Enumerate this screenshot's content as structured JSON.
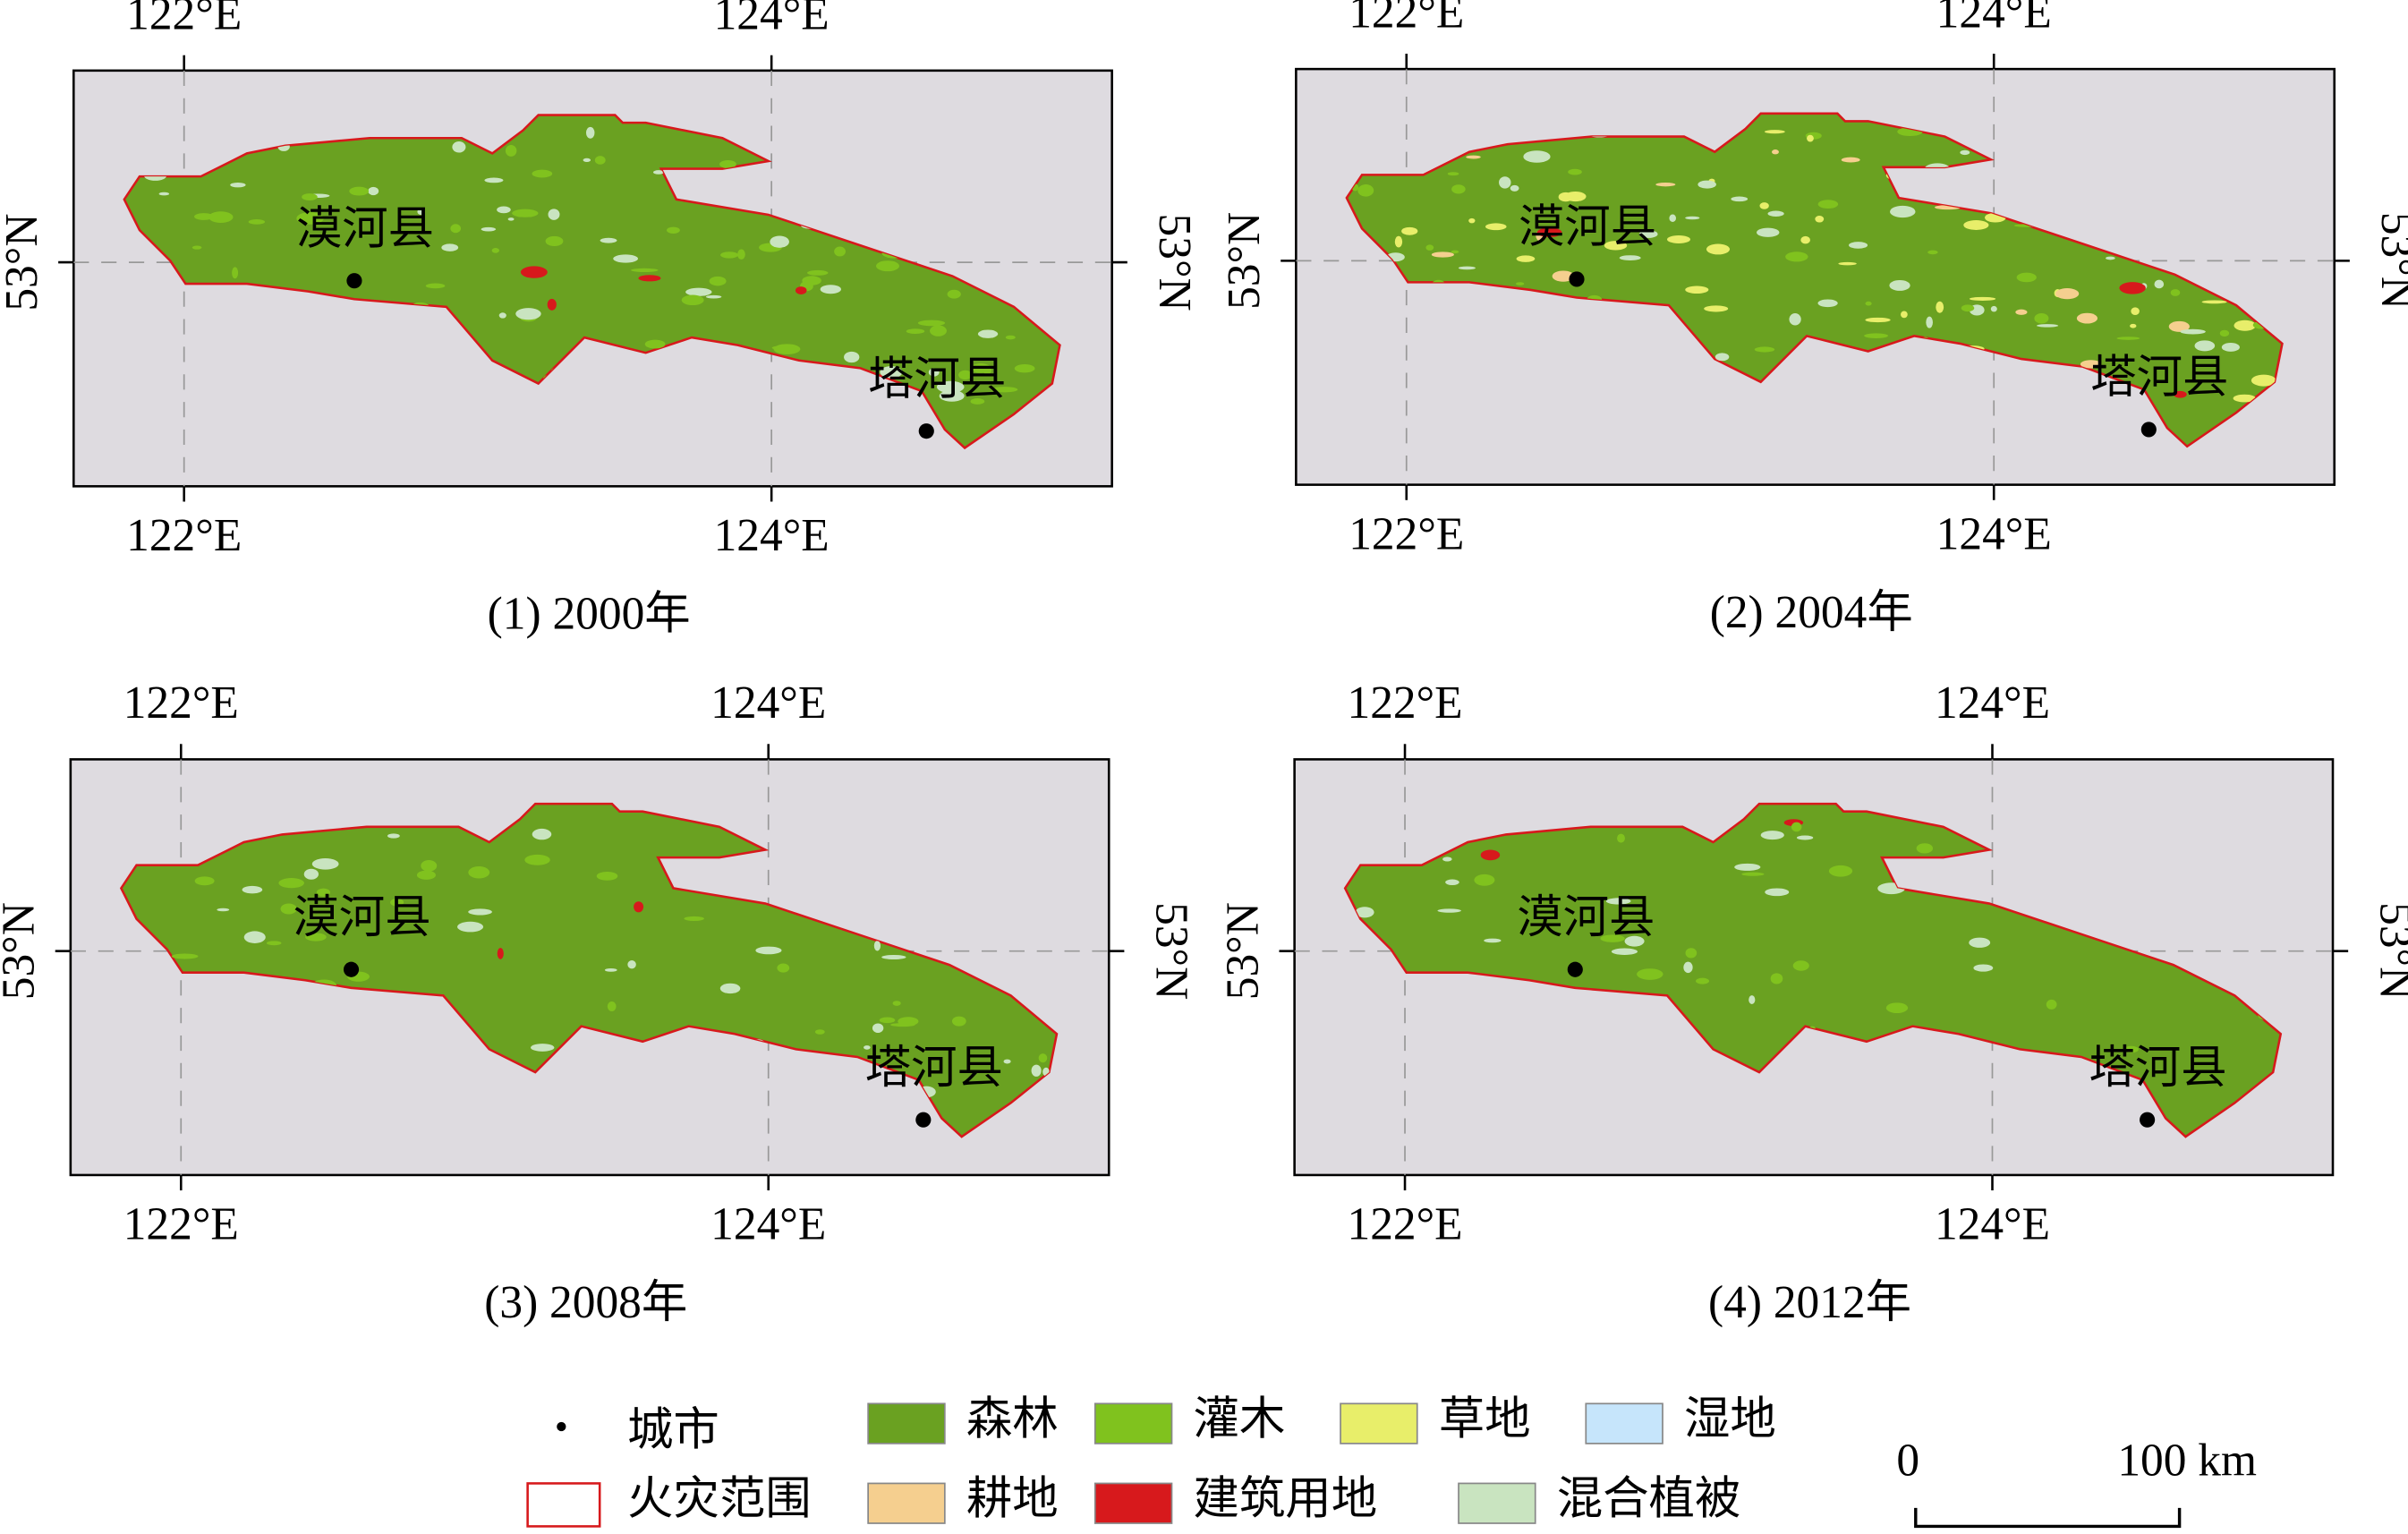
{
  "panels": [
    {
      "caption": "(1) 2000年"
    },
    {
      "caption": "(2) 2004年"
    },
    {
      "caption": "(3) 2008年"
    },
    {
      "caption": "(4) 2012年"
    }
  ],
  "axis_labels": {
    "lon": [
      "122°E",
      "124°E"
    ],
    "lat": "53°N"
  },
  "cities": [
    "漠河县",
    "塔河县"
  ],
  "legend": [
    {
      "label": "城市",
      "color": "#000000"
    },
    {
      "label": "火灾范围",
      "color": "#d7191c"
    },
    {
      "label": "森林",
      "color": "#6aa121"
    },
    {
      "label": "耕地",
      "color": "#f5cf8f"
    },
    {
      "label": "灌木",
      "color": "#80c21e"
    },
    {
      "label": "建筑用地",
      "color": "#d7191c"
    },
    {
      "label": "草地",
      "color": "#e8ee6a"
    },
    {
      "label": "混合植被",
      "color": "#c9e4c0"
    },
    {
      "label": "湿地",
      "color": "#c6e5fb"
    }
  ],
  "scale_bar": {
    "labels": [
      "0",
      "100 km"
    ]
  }
}
